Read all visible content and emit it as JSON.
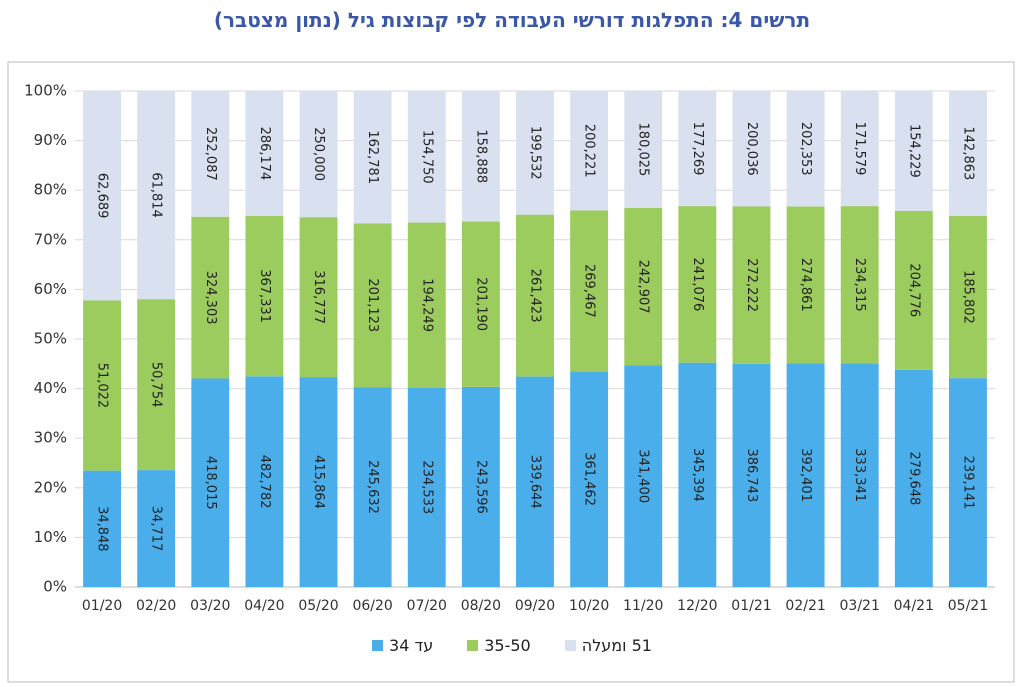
{
  "chart_data": {
    "type": "bar",
    "stacked": "percent",
    "title": "תרשים 4: התפלגות דורשי העבודה לפי קבוצות גיל (נתון מצטבר)",
    "categories": [
      "01/20",
      "02/20",
      "03/20",
      "04/20",
      "05/20",
      "06/20",
      "07/20",
      "08/20",
      "09/20",
      "10/20",
      "11/20",
      "12/20",
      "01/21",
      "02/21",
      "03/21",
      "04/21",
      "05/21"
    ],
    "series": [
      {
        "name": "עד 34",
        "color": "#4aaeea",
        "values": [
          34848,
          34717,
          418015,
          482782,
          415864,
          245632,
          234533,
          243596,
          339644,
          361462,
          341400,
          345394,
          386743,
          392401,
          333341,
          279648,
          239141
        ],
        "value_labels": [
          "34,848",
          "34,717",
          "418,015",
          "482,782",
          "415,864",
          "245,632",
          "234,533",
          "243,596",
          "339,644",
          "361,462",
          "341,400",
          "345,394",
          "386,743",
          "392,401",
          "333,341",
          "279,648",
          "239,141"
        ]
      },
      {
        "name": "35-50",
        "color": "#9ccb5e",
        "values": [
          51022,
          50754,
          324303,
          367331,
          316777,
          201123,
          194249,
          201190,
          261423,
          269467,
          242907,
          241076,
          272222,
          274861,
          234315,
          204776,
          185802
        ],
        "value_labels": [
          "51,022",
          "50,754",
          "324,303",
          "367,331",
          "316,777",
          "201,123",
          "194,249",
          "201,190",
          "261,423",
          "269,467",
          "242,907",
          "241,076",
          "272,222",
          "274,861",
          "234,315",
          "204,776",
          "185,802"
        ]
      },
      {
        "name": "51 ומעלה",
        "color": "#d9e0ef",
        "values": [
          62689,
          61814,
          252087,
          286174,
          250000,
          162781,
          154750,
          158888,
          199532,
          200221,
          180025,
          177269,
          200036,
          202353,
          171579,
          154229,
          142863
        ],
        "value_labels": [
          "62,689",
          "61,814",
          "252,087",
          "286,174",
          "250,000",
          "162,781",
          "154,750",
          "158,888",
          "199,532",
          "200,221",
          "180,025",
          "177,269",
          "200,036",
          "202,353",
          "171,579",
          "154,229",
          "142,863"
        ]
      }
    ],
    "ylim": [
      0,
      100
    ],
    "yticks": [
      {
        "value": 0,
        "label": "0%"
      },
      {
        "value": 10,
        "label": "10%"
      },
      {
        "value": 20,
        "label": "20%"
      },
      {
        "value": 30,
        "label": "30%"
      },
      {
        "value": 40,
        "label": "40%"
      },
      {
        "value": 50,
        "label": "50%"
      },
      {
        "value": 60,
        "label": "60%"
      },
      {
        "value": 70,
        "label": "70%"
      },
      {
        "value": 80,
        "label": "80%"
      },
      {
        "value": 90,
        "label": "90%"
      },
      {
        "value": 100,
        "label": "100%"
      }
    ],
    "grid": true
  }
}
